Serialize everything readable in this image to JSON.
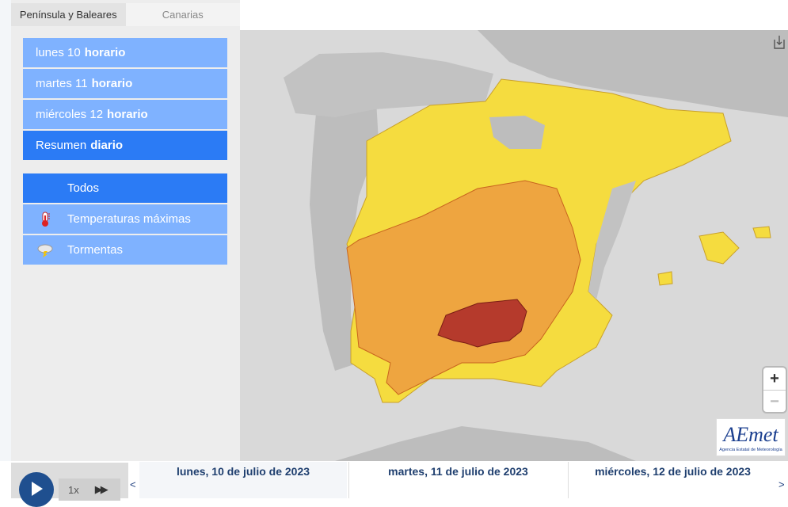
{
  "tabs": [
    {
      "label": "Península y Baleares"
    },
    {
      "label": "Canarias"
    }
  ],
  "days_menu": [
    {
      "day": "lunes 10",
      "mode": "horario"
    },
    {
      "day": "martes 11",
      "mode": "horario"
    },
    {
      "day": "miércoles 12",
      "mode": "horario"
    },
    {
      "day": "Resumen",
      "mode": "diario"
    }
  ],
  "filters": [
    {
      "label": "Todos",
      "icon": ""
    },
    {
      "label": "Temperaturas máximas",
      "icon": "thermometer-icon"
    },
    {
      "label": "Tormentas",
      "icon": "storm-icon"
    }
  ],
  "zoom": {
    "in": "+",
    "out": "−"
  },
  "playback": {
    "speed": "1x"
  },
  "timeline": {
    "prev": "<",
    "next": ">",
    "days": [
      "lunes, 10 de julio de 2023",
      "martes, 11 de julio de 2023",
      "miércoles, 12 de julio de 2023"
    ]
  },
  "logo": {
    "name": "AEmet",
    "sub": "Agencia Estatal de Meteorología"
  },
  "colors": {
    "menu": "#7fb2ff",
    "menu_selected": "#2b7bf5",
    "yellow": "#f5dc3f",
    "orange": "#eea540",
    "red": "#b53a2c",
    "land_gray": "#bdbdbd"
  }
}
